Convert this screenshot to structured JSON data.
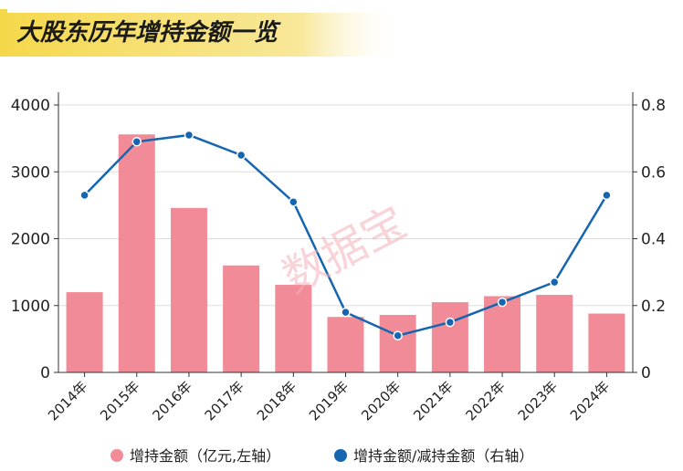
{
  "watermark": "数据宝",
  "chart_data": {
    "title": "大股东历年增持金额一览",
    "type": "bar+line",
    "categories": [
      "2014年",
      "2015年",
      "2016年",
      "2017年",
      "2018年",
      "2019年",
      "2020年",
      "2021年",
      "2022年",
      "2023年",
      "2024年"
    ],
    "series": [
      {
        "name": "增持金额（亿元,左轴）",
        "type": "bar",
        "axis": "left",
        "color": "#f28b98",
        "values": [
          1200,
          3560,
          2460,
          1600,
          1310,
          830,
          860,
          1050,
          1140,
          1160,
          880
        ]
      },
      {
        "name": "增持金额/减持金额（右轴）",
        "type": "line",
        "axis": "right",
        "color": "#1565b0",
        "values": [
          0.53,
          0.69,
          0.71,
          0.65,
          0.51,
          0.18,
          0.11,
          0.15,
          0.21,
          0.27,
          0.53
        ]
      }
    ],
    "y_left": {
      "ylim": [
        0,
        4000
      ],
      "ticks": [
        "0",
        "1000",
        "2000",
        "3000",
        "4000"
      ]
    },
    "y_right": {
      "ylim": [
        0,
        0.8
      ],
      "ticks": [
        "0",
        "0.2",
        "0.4",
        "0.6",
        "0.8"
      ]
    },
    "grid": "horizontal",
    "legend": "bottom"
  },
  "colors": {
    "title_accent": "#f5d84a",
    "title_text": "#1a1a1a",
    "watermark": "#f3b0b8"
  }
}
